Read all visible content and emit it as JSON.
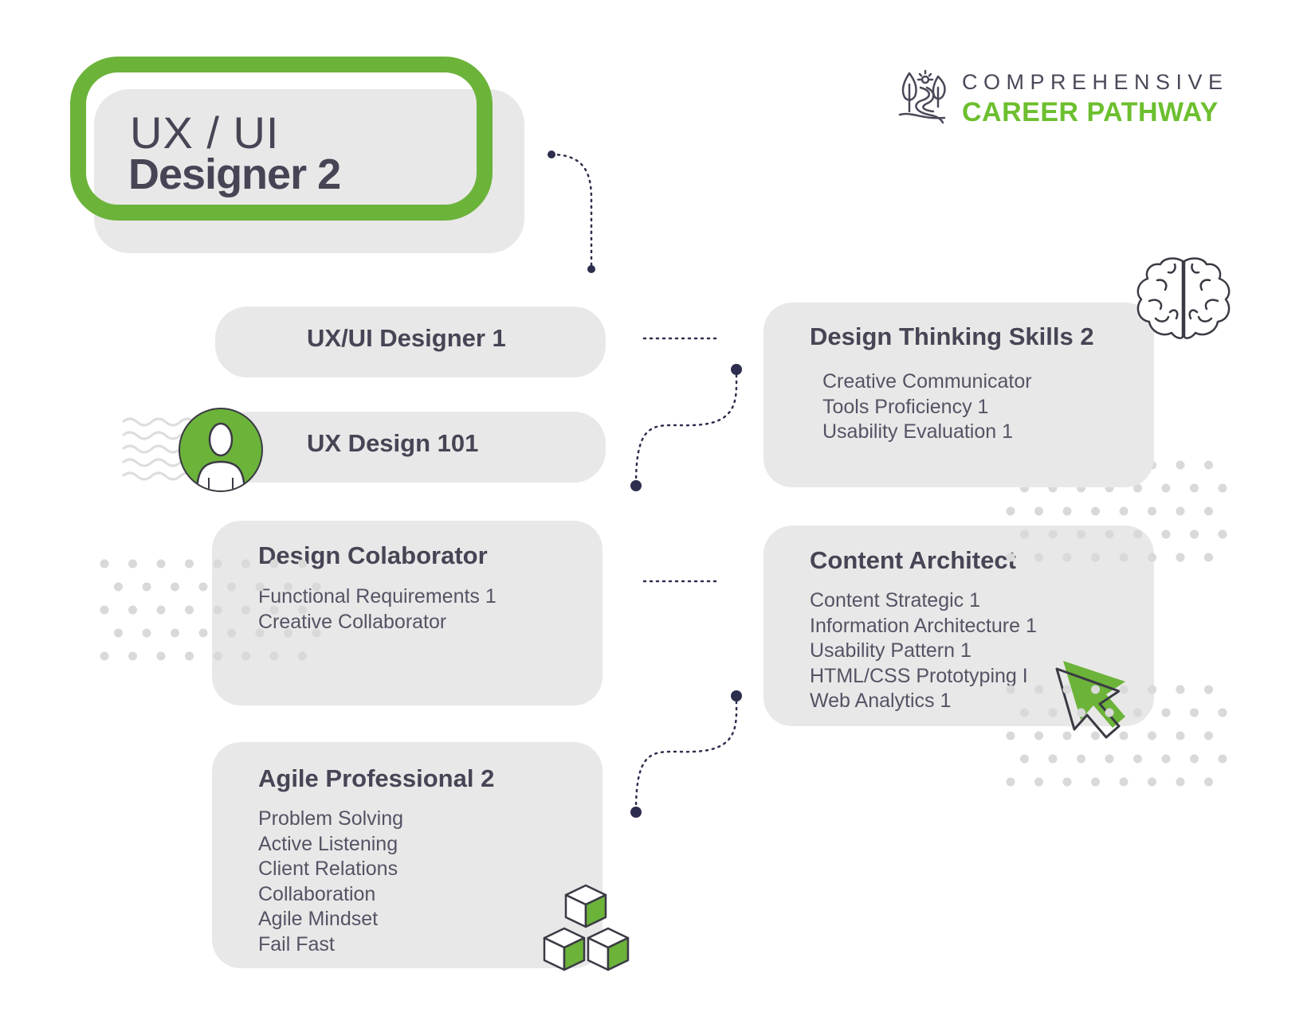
{
  "brand": {
    "line1": "COMPREHENSIVE",
    "line2": "CAREER PATHWAY",
    "logo_icon": "winding-path-trees-icon"
  },
  "title": {
    "line1": "UX / UI",
    "line2": "Designer 2"
  },
  "colors": {
    "green": "#6cb33a",
    "card_bg": "#e8e8e8",
    "text": "#474555",
    "connector": "#2d2e4e"
  },
  "prerequisites": [
    {
      "title": "UX/UI Designer 1"
    },
    {
      "title": "UX Design 101",
      "icon": "user-avatar-icon"
    }
  ],
  "skills": {
    "design_collaborator": {
      "title": "Design Colaborator",
      "items": [
        "Functional Requirements 1",
        "Creative Collaborator"
      ]
    },
    "agile_professional": {
      "title": "Agile Professional 2",
      "items": [
        "Problem Solving",
        "Active Listening",
        "Client Relations",
        "Collaboration",
        "Agile Mindset",
        "Fail Fast"
      ],
      "icon": "stacked-cubes-icon"
    },
    "design_thinking": {
      "title": "Design Thinking Skills 2",
      "items": [
        "Creative Communicator",
        "Tools Proficiency 1",
        "Usability Evaluation 1"
      ],
      "icon": "brain-icon"
    },
    "content_architect": {
      "title": "Content Architect",
      "items": [
        "Content Strategic 1",
        "Information Architecture 1",
        "Usability Pattern 1",
        "HTML/CSS Prototyping I",
        "Web Analytics 1"
      ],
      "icon": "cursor-arrow-icon"
    }
  }
}
